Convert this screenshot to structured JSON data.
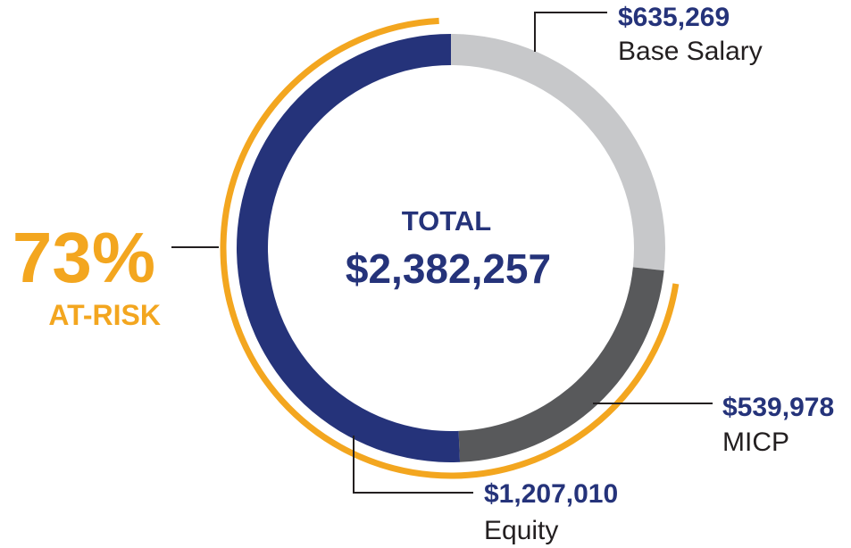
{
  "chart_data": {
    "type": "pie",
    "subtype": "donut",
    "center": {
      "title": "TOTAL",
      "total": "$2,382,257"
    },
    "slices": [
      {
        "name": "Base Salary",
        "value": 635269,
        "label_value": "$635,269",
        "color": "#c7c8ca"
      },
      {
        "name": "MICP",
        "value": 539978,
        "label_value": "$539,978",
        "color": "#58595b"
      },
      {
        "name": "Equity",
        "value": 1207010,
        "label_value": "$1,207,010",
        "color": "#25337a"
      }
    ],
    "at_risk": {
      "percent": "73%",
      "label": "AT-RISK",
      "color": "#f3a61f",
      "covers": [
        "MICP",
        "Equity"
      ]
    },
    "colors": {
      "amount_text": "#25337a",
      "name_text": "#231f20",
      "leader": "#231f20"
    }
  }
}
